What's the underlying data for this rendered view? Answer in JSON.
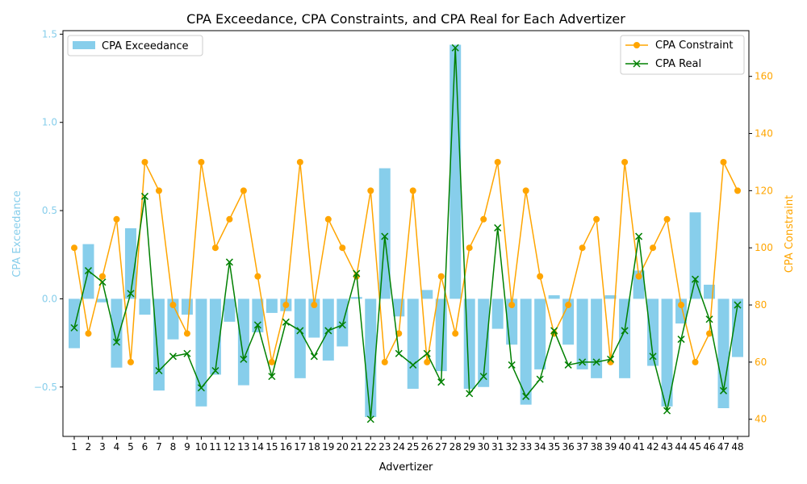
{
  "chart_data": {
    "type": "bar",
    "title": "CPA Exceedance, CPA Constraints, and CPA Real for Each Advertizer",
    "xlabel": "Advertizer",
    "ylabel_left": "CPA Exceedance",
    "ylabel_right": "CPA Constraint",
    "categories": [
      "1",
      "2",
      "3",
      "4",
      "5",
      "6",
      "7",
      "8",
      "9",
      "10",
      "11",
      "12",
      "13",
      "14",
      "15",
      "16",
      "17",
      "18",
      "19",
      "20",
      "21",
      "22",
      "23",
      "24",
      "25",
      "26",
      "27",
      "28",
      "29",
      "30",
      "31",
      "32",
      "33",
      "34",
      "35",
      "36",
      "37",
      "38",
      "39",
      "40",
      "41",
      "42",
      "43",
      "44",
      "45",
      "46",
      "47",
      "48"
    ],
    "left_axis": {
      "ylim": [
        -0.78,
        1.52
      ],
      "ticks": [
        -0.5,
        0.0,
        0.5,
        1.0,
        1.5
      ],
      "tick_labels": [
        "−0.5",
        "0.0",
        "0.5",
        "1.0",
        "1.5"
      ]
    },
    "right_axis": {
      "ylim": [
        34,
        176
      ],
      "ticks": [
        40,
        60,
        80,
        100,
        120,
        140,
        160
      ],
      "tick_labels": [
        "40",
        "60",
        "80",
        "100",
        "120",
        "140",
        "160"
      ]
    },
    "series": [
      {
        "name": "CPA Exceedance",
        "kind": "bar",
        "axis": "left",
        "color": "#87ceeb",
        "values": [
          -0.28,
          0.31,
          -0.02,
          -0.39,
          0.4,
          -0.09,
          -0.52,
          -0.23,
          -0.09,
          -0.61,
          -0.43,
          -0.13,
          -0.49,
          -0.19,
          -0.08,
          -0.07,
          -0.45,
          -0.22,
          -0.35,
          -0.27,
          0.01,
          -0.67,
          0.74,
          -0.1,
          -0.51,
          0.05,
          -0.41,
          1.44,
          -0.51,
          -0.5,
          -0.17,
          -0.26,
          -0.6,
          -0.4,
          0.02,
          -0.26,
          -0.4,
          -0.45,
          0.02,
          -0.45,
          0.16,
          -0.38,
          -0.61,
          -0.14,
          0.49,
          0.08,
          -0.62,
          -0.33
        ]
      },
      {
        "name": "CPA Constraint",
        "kind": "line",
        "marker": "circle",
        "axis": "right",
        "color": "#ffa500",
        "values": [
          100,
          70,
          90,
          110,
          60,
          130,
          120,
          80,
          70,
          130,
          100,
          110,
          120,
          90,
          60,
          80,
          130,
          80,
          110,
          100,
          90,
          120,
          60,
          70,
          120,
          60,
          90,
          70,
          100,
          110,
          130,
          80,
          120,
          90,
          70,
          80,
          100,
          110,
          60,
          130,
          90,
          100,
          110,
          80,
          60,
          70,
          130,
          120
        ]
      },
      {
        "name": "CPA Real",
        "kind": "line",
        "marker": "x",
        "axis": "right",
        "color": "#008000",
        "values": [
          72,
          92,
          88,
          67,
          84,
          118,
          57,
          62,
          63,
          51,
          57,
          95,
          61,
          73,
          55,
          74,
          71,
          62,
          71,
          73,
          91,
          40,
          104,
          63,
          59,
          63,
          53,
          170,
          49,
          55,
          107,
          59,
          48,
          54,
          71,
          59,
          60,
          60,
          61,
          71,
          104,
          62,
          43,
          68,
          89,
          75,
          50,
          80
        ]
      }
    ],
    "legend_left": {
      "position": "top-left",
      "entries": [
        "CPA Exceedance"
      ]
    },
    "legend_right": {
      "position": "top-right",
      "entries": [
        "CPA Constraint",
        "CPA Real"
      ]
    },
    "grid": false
  }
}
